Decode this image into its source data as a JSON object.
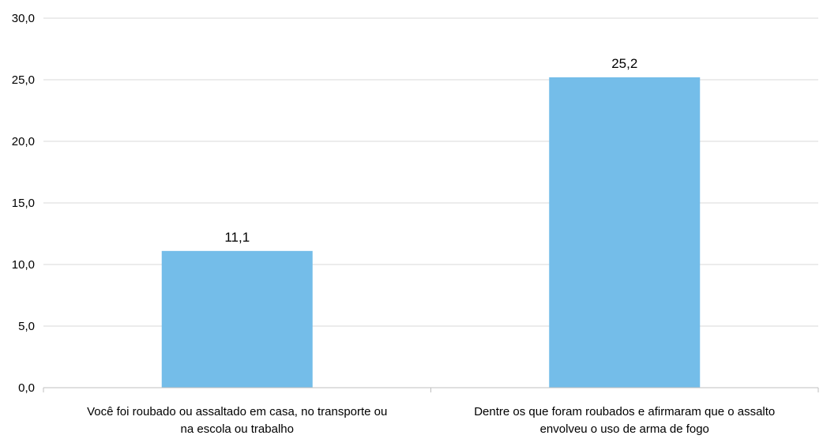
{
  "chart_data": {
    "type": "bar",
    "categories": [
      [
        "Você foi roubado ou assaltado em casa, no transporte ou",
        "na escola ou trabalho"
      ],
      [
        "Dentre os que foram roubados e afirmaram que o assalto",
        "envolveu o uso de arma de fogo"
      ]
    ],
    "values": [
      11.1,
      25.2
    ],
    "data_labels": [
      "11,1",
      "25,2"
    ],
    "ylim": [
      0,
      30
    ],
    "yticks": [
      0,
      5,
      10,
      15,
      20,
      25,
      30
    ],
    "ytick_labels": [
      "0,0",
      "5,0",
      "10,0",
      "15,0",
      "20,0",
      "25,0",
      "30,0"
    ],
    "bar_color": "#74bde9",
    "grid": true,
    "legend": "none"
  }
}
